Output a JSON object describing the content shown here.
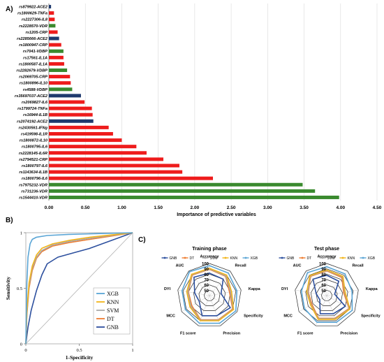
{
  "panels": {
    "a": "A)",
    "b": "B)",
    "c": "C)"
  },
  "chart_data": [
    {
      "type": "bar",
      "orientation": "horizontal",
      "xlabel": "Importance of predictive variables",
      "xlim": [
        0,
        4.5
      ],
      "xticks": [
        "0.00",
        "0.50",
        "1.00",
        "1.50",
        "2.00",
        "2.50",
        "3.00",
        "3.50",
        "4.00",
        "4.50"
      ],
      "grid": true,
      "colors": {
        "red": "#ee1c1c",
        "green": "#3a8a2e",
        "navy": "#1f3a6e"
      },
      "bars": [
        {
          "label": "rs879922-ACE2",
          "value": 0.03,
          "color": "navy"
        },
        {
          "label": "rs1800629-TNFa",
          "value": 0.07,
          "color": "red"
        },
        {
          "label": "rs2227306-IL8",
          "value": 0.08,
          "color": "red"
        },
        {
          "label": "rs2228570-VDR",
          "value": 0.09,
          "color": "green"
        },
        {
          "label": "rs1205-CRP",
          "value": 0.12,
          "color": "red"
        },
        {
          "label": "rs2285666-ACE2",
          "value": 0.14,
          "color": "navy"
        },
        {
          "label": "rs1800947-CRP",
          "value": 0.17,
          "color": "red"
        },
        {
          "label": "rs7041-VDBP",
          "value": 0.2,
          "color": "green"
        },
        {
          "label": "rs17561-IL1A",
          "value": 0.2,
          "color": "red"
        },
        {
          "label": "rs1800587-IL1A",
          "value": 0.21,
          "color": "red"
        },
        {
          "label": "rs2282679-VDBP",
          "value": 0.25,
          "color": "green"
        },
        {
          "label": "rs2069705-CRP",
          "value": 0.29,
          "color": "red"
        },
        {
          "label": "rs1800896-IL10",
          "value": 0.3,
          "color": "red"
        },
        {
          "label": "rs4588-VDBP",
          "value": 0.32,
          "color": "green"
        },
        {
          "label": "rs35697037-ACE2",
          "value": 0.44,
          "color": "navy"
        },
        {
          "label": "rs2069827-IL6",
          "value": 0.49,
          "color": "red"
        },
        {
          "label": "rs1799724-TNFa",
          "value": 0.59,
          "color": "red"
        },
        {
          "label": "rs16944-IL1B",
          "value": 0.6,
          "color": "red"
        },
        {
          "label": "rs2074192-ACE2",
          "value": 0.61,
          "color": "navy"
        },
        {
          "label": "rs2430561-IFNg",
          "value": 0.82,
          "color": "red"
        },
        {
          "label": "rs419598-IL1R",
          "value": 0.88,
          "color": "red"
        },
        {
          "label": "rs1800872-IL10",
          "value": 1.0,
          "color": "red"
        },
        {
          "label": "rs1800795-IL6",
          "value": 1.2,
          "color": "red"
        },
        {
          "label": "rs2228145-IL6R",
          "value": 1.34,
          "color": "red"
        },
        {
          "label": "rs2794521-CRP",
          "value": 1.57,
          "color": "red"
        },
        {
          "label": "rs1800797-IL6",
          "value": 1.79,
          "color": "red"
        },
        {
          "label": "rs1143634-IL1B",
          "value": 1.83,
          "color": "red"
        },
        {
          "label": "rs1800796-IL6",
          "value": 2.25,
          "color": "red"
        },
        {
          "label": "rs7975232-VDR",
          "value": 3.48,
          "color": "green"
        },
        {
          "label": "rs731236-VDR",
          "value": 3.65,
          "color": "green"
        },
        {
          "label": "rs1544410-VDR",
          "value": 3.98,
          "color": "green"
        }
      ]
    },
    {
      "type": "line",
      "subtype": "roc",
      "xlabel": "1-Specificity",
      "ylabel": "Sensitivity",
      "xlim": [
        0,
        1
      ],
      "ylim": [
        0,
        1
      ],
      "xticks": [
        "0",
        "0.5",
        "1"
      ],
      "yticks": [
        "0",
        "0.5",
        "1"
      ],
      "legend_position": "bottom-right",
      "series": [
        {
          "name": "XGB",
          "color": "#5aa5d5",
          "x": [
            0,
            0.01,
            0.02,
            0.04,
            0.06,
            0.1,
            0.2,
            0.4,
            0.6,
            0.8,
            1
          ],
          "y": [
            0,
            0.55,
            0.78,
            0.9,
            0.94,
            0.96,
            0.975,
            0.985,
            0.99,
            0.995,
            1
          ]
        },
        {
          "name": "KNN",
          "color": "#f2b418",
          "x": [
            0,
            0.01,
            0.03,
            0.06,
            0.1,
            0.15,
            0.25,
            0.4,
            0.6,
            0.8,
            1
          ],
          "y": [
            0,
            0.3,
            0.55,
            0.7,
            0.8,
            0.86,
            0.9,
            0.93,
            0.96,
            0.98,
            1
          ]
        },
        {
          "name": "SVM",
          "color": "#a9a9a9",
          "x": [
            0,
            0.01,
            0.03,
            0.06,
            0.1,
            0.15,
            0.25,
            0.4,
            0.6,
            0.8,
            1
          ],
          "y": [
            0,
            0.28,
            0.52,
            0.68,
            0.78,
            0.84,
            0.89,
            0.92,
            0.95,
            0.975,
            1
          ]
        },
        {
          "name": "DT",
          "color": "#ee7d31",
          "x": [
            0,
            0.01,
            0.03,
            0.06,
            0.1,
            0.15,
            0.25,
            0.4,
            0.6,
            0.8,
            1
          ],
          "y": [
            0,
            0.26,
            0.5,
            0.66,
            0.77,
            0.83,
            0.88,
            0.91,
            0.94,
            0.97,
            1
          ]
        },
        {
          "name": "GNB",
          "color": "#2c4f9e",
          "x": [
            0,
            0.02,
            0.05,
            0.1,
            0.15,
            0.2,
            0.3,
            0.45,
            0.6,
            0.8,
            1
          ],
          "y": [
            0,
            0.15,
            0.3,
            0.48,
            0.62,
            0.72,
            0.78,
            0.82,
            0.86,
            0.93,
            1
          ]
        }
      ]
    },
    {
      "type": "radar",
      "title": "Training phase",
      "axes": [
        "Accurracy",
        "Recall",
        "Kappa",
        "Specificity",
        "Precision",
        "F1 score",
        "MCC",
        "DYI",
        "AUC"
      ],
      "rticks": [
        "100",
        "90",
        "80",
        "70",
        "60",
        "50"
      ],
      "rlim": [
        40,
        100
      ],
      "series": [
        {
          "name": "GNB",
          "color": "#2c4f9e",
          "values": [
            82,
            80,
            62,
            85,
            80,
            80,
            62,
            68,
            85
          ]
        },
        {
          "name": "DT",
          "color": "#ee7d31",
          "values": [
            89,
            87,
            78,
            90,
            88,
            88,
            78,
            80,
            90
          ]
        },
        {
          "name": "SVM",
          "color": "#a9a9a9",
          "values": [
            90,
            88,
            80,
            91,
            89,
            89,
            80,
            81,
            91
          ]
        },
        {
          "name": "KNN",
          "color": "#f2b418",
          "values": [
            91,
            90,
            82,
            92,
            90,
            90,
            82,
            83,
            92
          ]
        },
        {
          "name": "XGB",
          "color": "#5aa5d5",
          "values": [
            96,
            95,
            92,
            97,
            95,
            95,
            92,
            92,
            98
          ]
        }
      ]
    },
    {
      "type": "radar",
      "title": "Test phase",
      "axes": [
        "Accurracy",
        "Recall",
        "Kappa",
        "Specificity",
        "Precision",
        "F1 score",
        "MCC",
        "DYI",
        "AUC"
      ],
      "rticks": [
        "100",
        "90",
        "80",
        "70",
        "60",
        "50"
      ],
      "rlim": [
        40,
        100
      ],
      "series": [
        {
          "name": "GNB",
          "color": "#2c4f9e",
          "values": [
            78,
            75,
            55,
            80,
            76,
            76,
            55,
            60,
            80
          ]
        },
        {
          "name": "DT",
          "color": "#ee7d31",
          "values": [
            86,
            84,
            72,
            88,
            85,
            85,
            72,
            75,
            87
          ]
        },
        {
          "name": "SVM",
          "color": "#a9a9a9",
          "values": [
            87,
            86,
            74,
            89,
            86,
            86,
            74,
            76,
            88
          ]
        },
        {
          "name": "KNN",
          "color": "#f2b418",
          "values": [
            88,
            87,
            75,
            90,
            87,
            87,
            75,
            78,
            89
          ]
        },
        {
          "name": "XGB",
          "color": "#5aa5d5",
          "values": [
            94,
            93,
            88,
            95,
            93,
            93,
            88,
            88,
            96
          ]
        }
      ]
    }
  ]
}
